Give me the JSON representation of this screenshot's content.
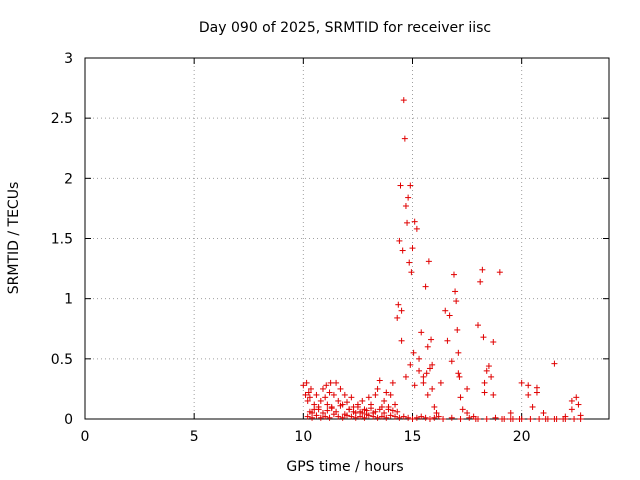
{
  "chart_data": {
    "type": "scatter",
    "title": "Day 090 of 2025, SRMTID for receiver iisc",
    "xlabel": "GPS time / hours",
    "ylabel": "SRMTID / TECUs",
    "xlim": [
      0,
      24
    ],
    "ylim": [
      0,
      3
    ],
    "grid": true,
    "marker": "+",
    "color": "#e00000",
    "xticks": [
      0,
      5,
      10,
      15,
      20
    ],
    "xtick_labels": [
      "0",
      "5",
      "10",
      "15",
      "20"
    ],
    "yticks": [
      0,
      0.5,
      1,
      1.5,
      2,
      2.5,
      3
    ],
    "ytick_labels": [
      "0",
      "0.5",
      "1",
      "1.5",
      "2",
      "2.5",
      "3"
    ],
    "series": [
      {
        "name": "SRMTID",
        "x": [
          10.0,
          10.1,
          10.15,
          10.2,
          10.25,
          10.3,
          10.35,
          10.4,
          10.5,
          10.6,
          10.7,
          10.8,
          10.9,
          11.0,
          11.05,
          11.1,
          11.2,
          11.25,
          11.3,
          11.4,
          11.5,
          11.6,
          11.7,
          11.8,
          11.9,
          12.0,
          12.1,
          12.2,
          12.3,
          12.4,
          12.5,
          12.6,
          12.7,
          12.8,
          12.9,
          13.0,
          13.1,
          13.2,
          13.3,
          13.4,
          13.5,
          13.6,
          13.7,
          13.8,
          13.9,
          14.0,
          14.1,
          14.2,
          14.3,
          14.35,
          14.4,
          14.45,
          14.5,
          14.55,
          14.6,
          14.65,
          14.7,
          14.75,
          14.8,
          14.85,
          14.9,
          14.95,
          15.0,
          15.05,
          15.1,
          15.2,
          15.3,
          15.4,
          15.5,
          15.6,
          15.65,
          15.7,
          15.75,
          15.8,
          15.85,
          15.9,
          16.0,
          16.1,
          16.2,
          16.5,
          16.6,
          16.8,
          16.9,
          16.95,
          17.0,
          17.05,
          17.1,
          17.15,
          17.2,
          17.3,
          17.5,
          17.8,
          18.0,
          18.1,
          18.2,
          18.25,
          18.3,
          18.4,
          18.5,
          18.6,
          18.7,
          19.0,
          19.5,
          20.0,
          20.3,
          20.5,
          20.7,
          21.0,
          21.5,
          22.0,
          22.3,
          22.5,
          22.6,
          22.7,
          10.2,
          10.4,
          10.6,
          10.8,
          11.0,
          11.2,
          11.4,
          11.6,
          11.8,
          12.0,
          12.2,
          12.4,
          12.6,
          12.8,
          13.0,
          13.2,
          13.4,
          13.6,
          13.8,
          14.0,
          14.2,
          14.4,
          14.6,
          14.8,
          15.0,
          15.2,
          15.4,
          15.6,
          15.8,
          16.0,
          16.4,
          16.8,
          17.2,
          17.6,
          18.0,
          18.4,
          18.8,
          19.2,
          19.6,
          20.0,
          20.4,
          20.8,
          21.2,
          21.6,
          22.0,
          22.4,
          10.3,
          10.5,
          10.7,
          10.9,
          11.1,
          11.3,
          11.5,
          11.7,
          11.9,
          12.1,
          12.3,
          12.5,
          12.7,
          12.9,
          13.1,
          13.3,
          13.5,
          13.7,
          13.9,
          14.1,
          14.3,
          14.5,
          14.7,
          14.9,
          15.1,
          15.3,
          15.5,
          15.7,
          15.9,
          16.3,
          16.7,
          17.1,
          17.5,
          17.9,
          18.3,
          18.7,
          19.1,
          19.5,
          19.9,
          20.3,
          20.7,
          21.1,
          21.5,
          21.9,
          22.3,
          22.7
        ],
        "y": [
          0.28,
          0.2,
          0.3,
          0.15,
          0.22,
          0.18,
          0.25,
          0.05,
          0.12,
          0.2,
          0.08,
          0.15,
          0.25,
          0.18,
          0.28,
          0.12,
          0.22,
          0.3,
          0.1,
          0.2,
          0.3,
          0.15,
          0.25,
          0.12,
          0.2,
          0.14,
          0.08,
          0.18,
          0.1,
          0.05,
          0.12,
          0.06,
          0.15,
          0.08,
          0.04,
          0.18,
          0.12,
          0.05,
          0.2,
          0.25,
          0.32,
          0.1,
          0.15,
          0.22,
          0.08,
          0.2,
          0.3,
          0.12,
          0.84,
          0.95,
          1.48,
          1.94,
          0.65,
          1.4,
          2.65,
          2.33,
          1.77,
          1.63,
          1.84,
          1.3,
          1.94,
          1.22,
          1.42,
          0.55,
          1.64,
          1.58,
          0.5,
          0.72,
          0.3,
          1.1,
          0.38,
          0.6,
          1.31,
          0.42,
          0.66,
          0.25,
          0.1,
          0.05,
          0.02,
          0.9,
          0.65,
          0.48,
          1.2,
          1.06,
          0.98,
          0.74,
          0.55,
          0.35,
          0.18,
          0.08,
          0.05,
          0.02,
          0.78,
          1.14,
          1.24,
          0.68,
          0.3,
          0.4,
          0.44,
          0.35,
          0.64,
          1.22,
          0.05,
          0.3,
          0.2,
          0.1,
          0.26,
          0.05,
          0.46,
          0.02,
          0.08,
          0.18,
          0.12,
          0.03,
          0.02,
          0.01,
          0.03,
          0.01,
          0.02,
          0.01,
          0.04,
          0.02,
          0.01,
          0.03,
          0.02,
          0.01,
          0.02,
          0.01,
          0.03,
          0.02,
          0.01,
          0.02,
          0.01,
          0.03,
          0.02,
          0.01,
          0.02,
          0.01,
          0.0,
          0.01,
          0.02,
          0.01,
          0.0,
          0.01,
          0.0,
          0.01,
          0.0,
          0.01,
          0.0,
          0.0,
          0.01,
          0.0,
          0.0,
          0.0,
          0.0,
          0.0,
          0.0,
          0.0,
          0.0,
          0.0,
          0.06,
          0.08,
          0.1,
          0.05,
          0.07,
          0.09,
          0.06,
          0.11,
          0.04,
          0.08,
          0.06,
          0.1,
          0.05,
          0.07,
          0.09,
          0.06,
          0.08,
          0.05,
          0.1,
          0.07,
          0.06,
          0.9,
          0.35,
          0.45,
          0.28,
          0.4,
          0.35,
          0.2,
          0.45,
          0.3,
          0.86,
          0.38,
          0.25,
          0.0,
          0.22,
          0.2,
          0.0,
          0.0,
          0.0,
          0.28,
          0.22,
          0.0,
          0.0,
          0.0,
          0.15,
          0.0
        ]
      }
    ]
  }
}
